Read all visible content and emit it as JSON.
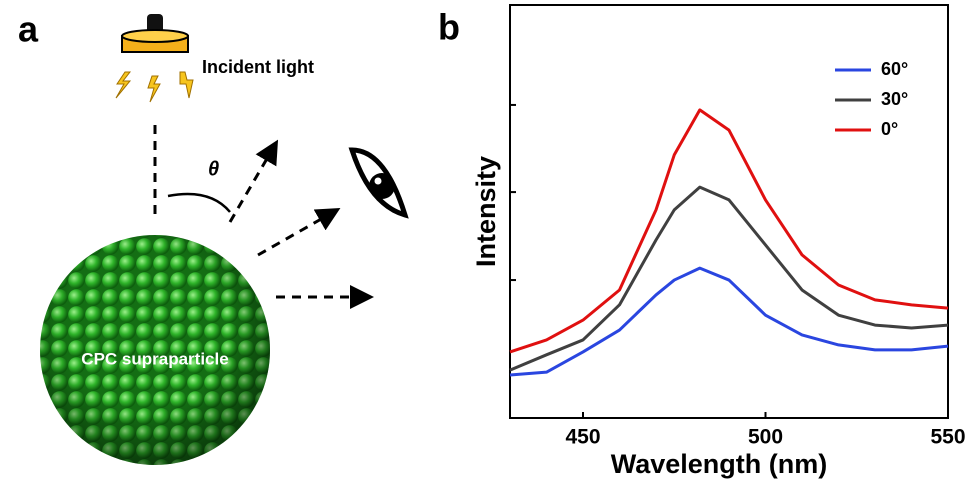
{
  "diagram": {
    "panel_label": "a",
    "light_label": "Incident light",
    "angle_label": "θ",
    "particle_label": "CPC supraparticle"
  },
  "chart_data": {
    "type": "line",
    "panel_label": "b",
    "x_label": "Wavelength (nm)",
    "y_label": "Intensity",
    "x": [
      430,
      440,
      450,
      460,
      470,
      475,
      482,
      490,
      500,
      510,
      520,
      530,
      540,
      550
    ],
    "series": [
      {
        "name": "60°",
        "color": "#2a46e0",
        "values": [
          10.4,
          11.1,
          16,
          21.3,
          29.8,
          33.4,
          36.3,
          33.4,
          24.9,
          20.1,
          17.7,
          16.5,
          16.5,
          17.4
        ]
      },
      {
        "name": "30°",
        "color": "#404040",
        "values": [
          11.6,
          15.3,
          18.9,
          27.4,
          43.1,
          50.4,
          55.9,
          52.8,
          41.9,
          31,
          24.9,
          22.5,
          21.8,
          22.5
        ]
      },
      {
        "name": "0°",
        "color": "#e01010",
        "values": [
          16,
          18.9,
          23.7,
          31,
          50.4,
          63.7,
          74.6,
          69.7,
          52.8,
          39.5,
          32.2,
          28.6,
          27.4,
          26.6
        ]
      }
    ],
    "xlim": [
      430,
      550
    ],
    "xticks": [
      450,
      500,
      550
    ],
    "ylim": [
      0,
      100
    ],
    "yticks": [
      33.4,
      54.7,
      75.8
    ],
    "show_ytick_labels": false,
    "legend": "upper right"
  }
}
